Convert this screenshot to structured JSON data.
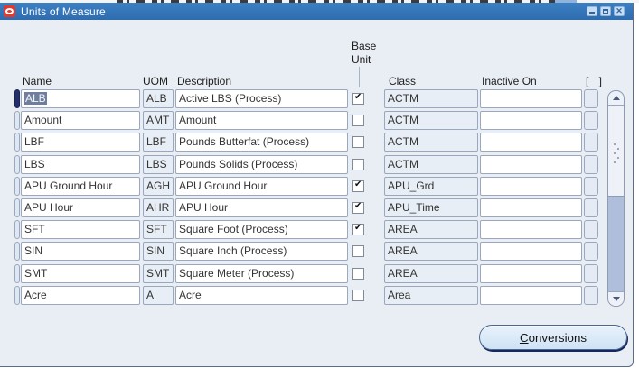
{
  "window": {
    "title": "Units of Measure",
    "controls": [
      "minimize-icon",
      "maximize-icon",
      "close-icon"
    ]
  },
  "colors": {
    "title_bar": "#2f6cae",
    "title_bar_light": "#3b80c4",
    "canvas": "#e9edf4",
    "selection": "#6e7e9b",
    "record_selected": "#222f6b",
    "scroll_track": "#afbeda",
    "button_shadow": "#17265c"
  },
  "table": {
    "headers": {
      "name": "Name",
      "uom": "UOM",
      "description": "Description",
      "base_unit_line1": "Base",
      "base_unit_line2": "Unit",
      "class": "Class",
      "inactive_on": "Inactive On",
      "flex": "[ ]"
    },
    "rows": [
      {
        "name": "ALB",
        "uom": "ALB",
        "description": "Active LBS (Process)",
        "base_unit": true,
        "class": "ACTM",
        "inactive_on": "",
        "selected": true
      },
      {
        "name": "Amount",
        "uom": "AMT",
        "description": "Amount",
        "base_unit": false,
        "class": "ACTM",
        "inactive_on": ""
      },
      {
        "name": "LBF",
        "uom": "LBF",
        "description": "Pounds Butterfat (Process)",
        "base_unit": false,
        "class": "ACTM",
        "inactive_on": ""
      },
      {
        "name": "LBS",
        "uom": "LBS",
        "description": "Pounds Solids (Process)",
        "base_unit": false,
        "class": "ACTM",
        "inactive_on": ""
      },
      {
        "name": "APU Ground Hour",
        "uom": "AGH",
        "description": "APU Ground Hour",
        "base_unit": true,
        "class": "APU_Grd",
        "inactive_on": ""
      },
      {
        "name": "APU Hour",
        "uom": "AHR",
        "description": "APU Hour",
        "base_unit": true,
        "class": "APU_Time",
        "inactive_on": ""
      },
      {
        "name": "SFT",
        "uom": "SFT",
        "description": "Square Foot (Process)",
        "base_unit": true,
        "class": "AREA",
        "inactive_on": ""
      },
      {
        "name": "SIN",
        "uom": "SIN",
        "description": "Square Inch (Process)",
        "base_unit": false,
        "class": "AREA",
        "inactive_on": ""
      },
      {
        "name": "SMT",
        "uom": "SMT",
        "description": "Square Meter (Process)",
        "base_unit": false,
        "class": "AREA",
        "inactive_on": ""
      },
      {
        "name": "Acre",
        "uom": "A",
        "description": "Acre",
        "base_unit": false,
        "class": "Area",
        "inactive_on": ""
      }
    ]
  },
  "button": {
    "mnemonic": "C",
    "label_rest": "onversions"
  }
}
